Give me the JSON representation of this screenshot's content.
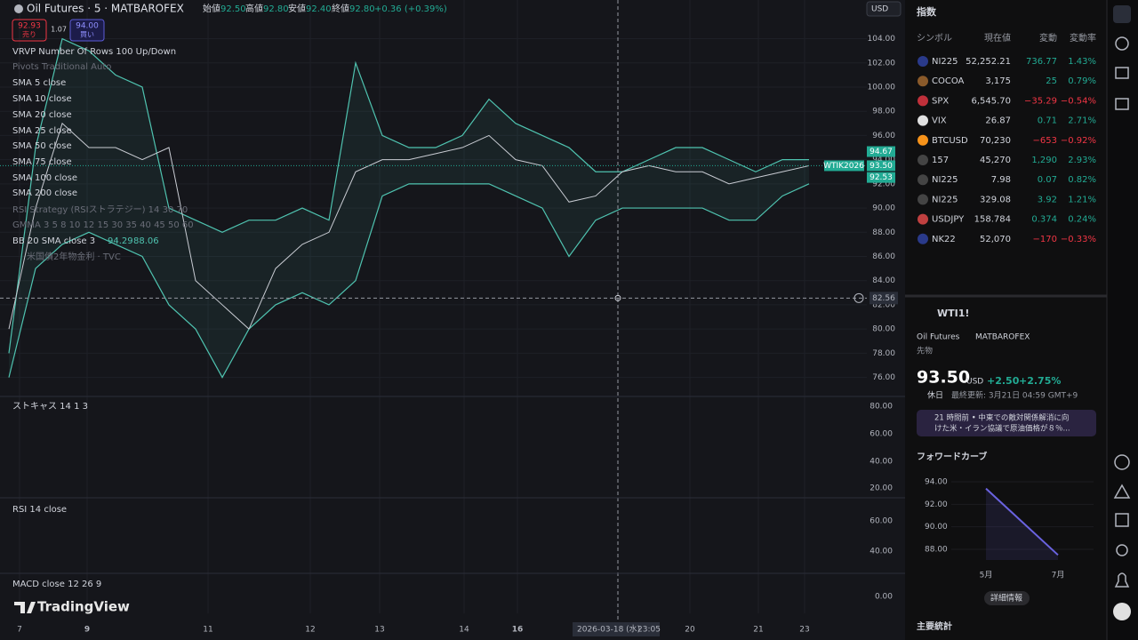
{
  "header": {
    "symbol": "Oil Futures · 5 · MATBAROFEX",
    "open_label": "始値",
    "open": "92.50",
    "high_label": "高値",
    "high": "92.80",
    "low_label": "安値",
    "low": "92.40",
    "close_label": "終値",
    "close": "92.80",
    "change": "+0.36 (+0.39%)",
    "currency": "USD"
  },
  "trade": {
    "sell_price": "92.93",
    "sell_label": "売り",
    "spread": "1.07",
    "buy_price": "94.00",
    "buy_label": "買い"
  },
  "indicators": [
    "VRVP Number Of Rows 100 Up/Down",
    "Pivots Traditional Auto",
    "SMA 5 close",
    "SMA 10 close",
    "SMA 20 close",
    "SMA 25 close",
    "SMA 50 close",
    "SMA 75 close",
    "SMA 100 close",
    "SMA 200 close",
    "RSI Strategy (RSIストラテジー) 14 30 70",
    "GMMA 3 5 8 10 12 15 30 35 40 45 50 60",
    "BB 20 SMA close 3",
    "米国債2年物金利 · TVC"
  ],
  "bb_values": [
    "94.29",
    "88.06"
  ],
  "price_chart": {
    "type": "line",
    "close": [
      80,
      90,
      97,
      95,
      95,
      94,
      95,
      84,
      82,
      80,
      85,
      87,
      88,
      93,
      94,
      94,
      94.5,
      95,
      96,
      94,
      93.5,
      90.5,
      91,
      93,
      93.5,
      93,
      93,
      92,
      92.5,
      93,
      93.5
    ],
    "bb_upper": [
      78,
      95,
      104,
      103,
      101,
      100,
      90,
      89,
      88,
      89,
      89,
      90,
      89,
      102,
      96,
      95,
      95,
      96,
      99,
      97,
      96,
      95,
      93,
      93,
      94,
      95,
      95,
      94,
      93,
      94,
      94
    ],
    "bb_lower": [
      76,
      85,
      87,
      88,
      87,
      86,
      82,
      80,
      76,
      80,
      82,
      83,
      82,
      84,
      91,
      92,
      92,
      92,
      92,
      91,
      90,
      86,
      89,
      90,
      90,
      90,
      90,
      89,
      89,
      91,
      92
    ],
    "close_color": "#c9ccd3",
    "band_color": "#4fc3b0",
    "ylim": [
      74.5,
      107.2
    ],
    "yticks": [
      {
        "value": 76,
        "label": "76.00"
      },
      {
        "value": 78,
        "label": "78.00"
      },
      {
        "value": 80,
        "label": "80.00"
      },
      {
        "value": 82,
        "label": "82.00"
      },
      {
        "value": 84,
        "label": "84.00"
      },
      {
        "value": 86,
        "label": "86.00"
      },
      {
        "value": 88,
        "label": "88.00"
      },
      {
        "value": 90,
        "label": "90.00"
      },
      {
        "value": 92,
        "label": "92.00"
      },
      {
        "value": 94,
        "label": "94.00"
      },
      {
        "value": 96,
        "label": "96.00"
      },
      {
        "value": 98,
        "label": "98.00"
      },
      {
        "value": 100,
        "label": "100.00"
      },
      {
        "value": 102,
        "label": "102.00"
      },
      {
        "value": 104,
        "label": "104.00"
      }
    ],
    "upper_last": {
      "value": 94.67,
      "label": "94.67"
    },
    "current": {
      "value": 93.5,
      "label": "93.50",
      "tag": "WTIK2026"
    },
    "lower_last": {
      "value": 92.53,
      "label": "92.53"
    },
    "crosshair": {
      "value": 82.56,
      "label": "82.56"
    },
    "xticks": [
      "7",
      "9",
      "11",
      "12",
      "13",
      "14",
      "16",
      "20",
      "21",
      "23"
    ],
    "crosshair_date": "2026-03-18 (水)",
    "crosshair_time": "23:05"
  },
  "panes": [
    {
      "title": "ストキャス 14 1 3",
      "yticks": [
        "80.00",
        "60.00",
        "40.00",
        "20.00"
      ]
    },
    {
      "title": "RSI 14 close",
      "yticks": [
        "60.00",
        "40.00"
      ]
    },
    {
      "title": "MACD close 12 26 9",
      "yticks": [
        "0.00"
      ]
    }
  ],
  "brand": "TradingView",
  "watchlist": {
    "title": "指数",
    "columns": [
      "シンボル",
      "現在値",
      "変動",
      "変動率"
    ],
    "rows": [
      [
        "NI225",
        "52,252.21",
        "736.77",
        "1.43%"
      ],
      [
        "COCOA",
        "3,175",
        "25",
        "0.79%"
      ],
      [
        "SPX",
        "6,545.70",
        "−35.29",
        "−0.54%"
      ],
      [
        "VIX",
        "26.87",
        "0.71",
        "2.71%"
      ],
      [
        "BTCUSD",
        "70,230",
        "−653",
        "−0.92%"
      ],
      [
        "157",
        "45,270",
        "1,290",
        "2.93%"
      ],
      [
        "NI225",
        "7.98",
        "0.07",
        "0.82%"
      ],
      [
        "NI225",
        "329.08",
        "3.92",
        "1.21%"
      ],
      [
        "USDJPY",
        "158.784",
        "0.374",
        "0.24%"
      ],
      [
        "NK22",
        "52,070",
        "−170",
        "−0.33%"
      ]
    ]
  },
  "detail": {
    "symbol": "WTI1!",
    "name": "Oil Futures",
    "exchange": "MATBAROFEX",
    "kind": "先物",
    "price": "93.50",
    "currency": "USD",
    "change": "+2.50",
    "change_pct": "+2.75%",
    "status": "休日",
    "updated": "最終更新: 3月21日 04:59 GMT+9",
    "news_1": "21 時間前 • 中東での敵対関係解消に向",
    "news_2": "けた米・イラン協議で原油価格が８％...",
    "more": "詳細情報",
    "stats": "主要統計"
  },
  "forward_curve": {
    "type": "line",
    "title": "フォワードカーブ",
    "categories": [
      "5月",
      "7月"
    ],
    "values": [
      93.4,
      87.5
    ],
    "color": "#6a63e0",
    "ylim": [
      87.05,
      94.95
    ],
    "yticks": [
      {
        "value": 94,
        "label": "94.00"
      },
      {
        "value": 92,
        "label": "92.00"
      },
      {
        "value": 90,
        "label": "90.00"
      },
      {
        "value": 88,
        "label": "88.00"
      }
    ]
  }
}
